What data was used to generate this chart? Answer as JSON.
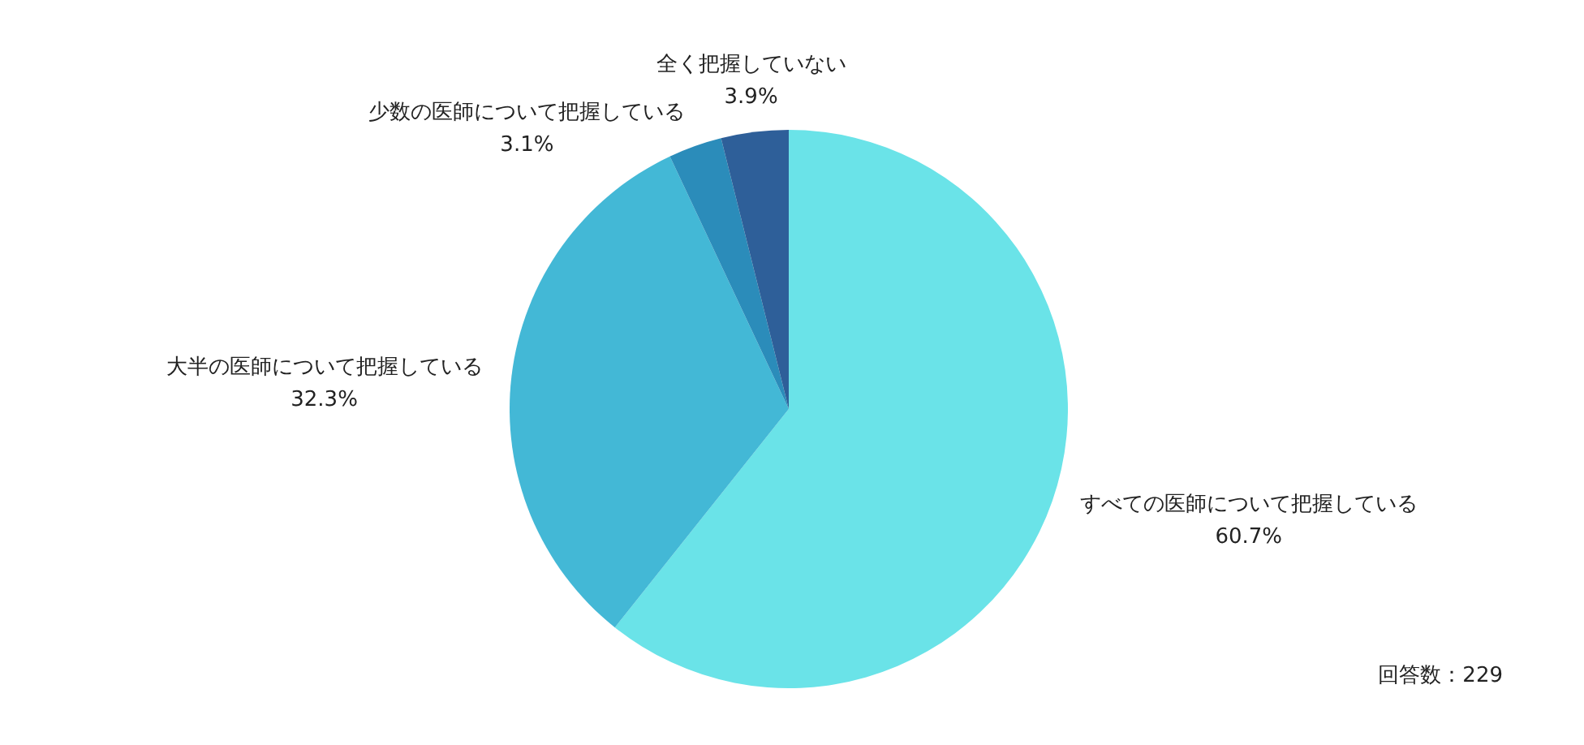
{
  "chart_data": {
    "type": "pie",
    "categories": [
      "すべての医師について把握している",
      "大半の医師について把握している",
      "少数の医師について把握している",
      "全く把握していない"
    ],
    "values": [
      60.7,
      32.3,
      3.1,
      3.9
    ],
    "value_labels": [
      "60.7%",
      "32.3%",
      "3.1%",
      "3.9%"
    ],
    "colors": [
      "#6ae3e8",
      "#43b8d6",
      "#2b8cba",
      "#2e5f99"
    ],
    "annotations": [
      "回答数：229"
    ]
  }
}
